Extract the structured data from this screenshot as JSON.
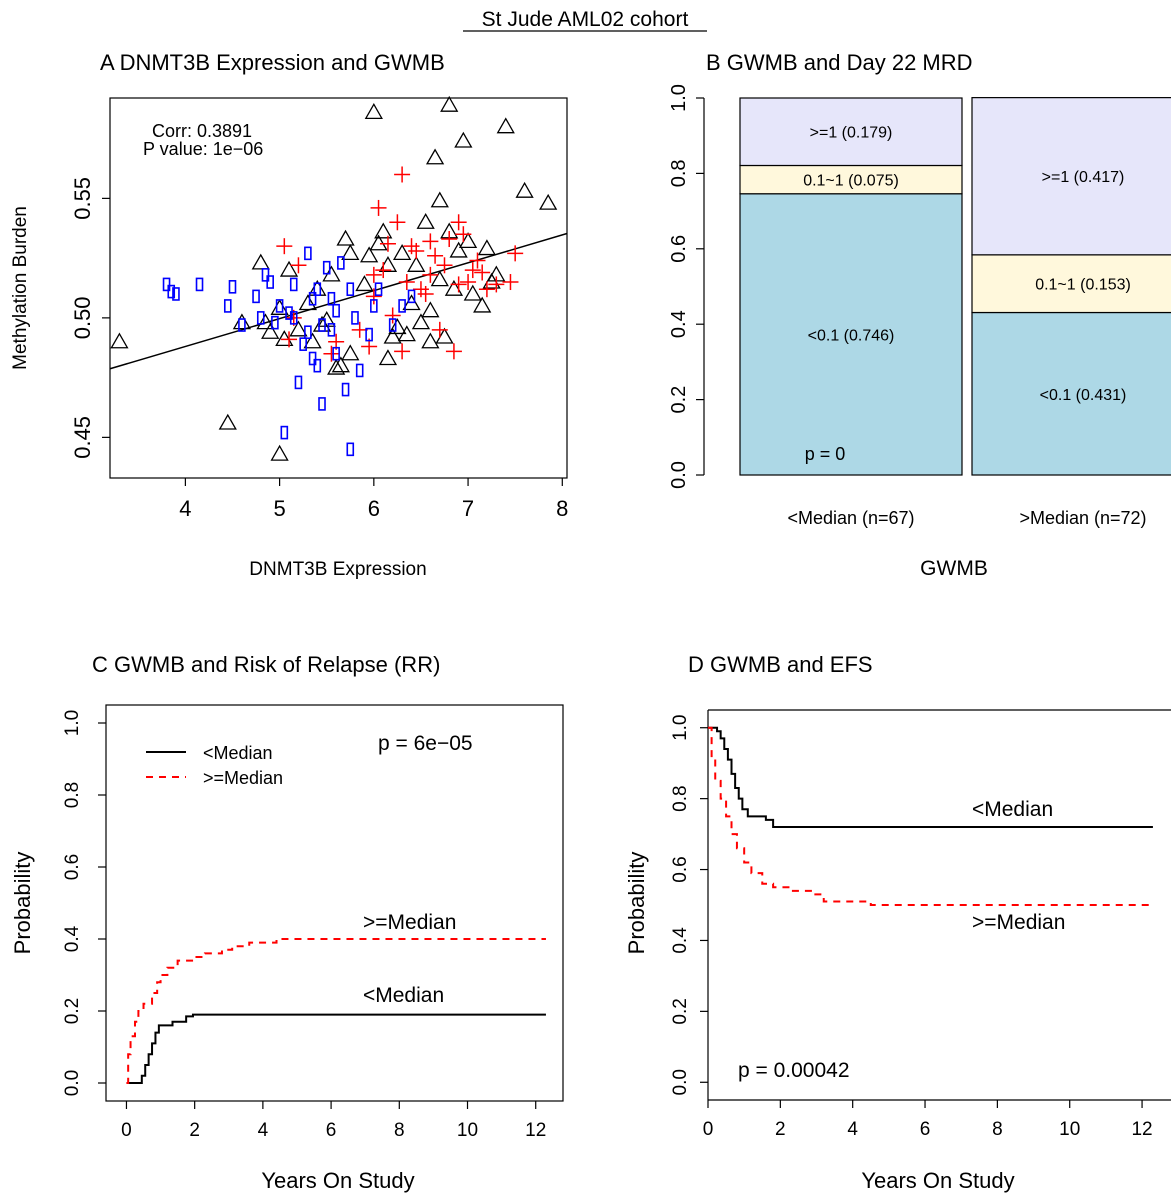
{
  "figure_title": "St Jude AML02 cohort",
  "chart_data": [
    {
      "panel": "A",
      "type": "scatter",
      "title": "A DNMT3B Expression and GWMB",
      "xlabel": "DNMT3B Expression",
      "ylabel": "Methylation Burden",
      "xlim": [
        3.2,
        8.05
      ],
      "ylim": [
        0.433,
        0.592
      ],
      "xticks": [
        "4",
        "5",
        "6",
        "7",
        "8"
      ],
      "yticks": [
        "0.45",
        "0.50",
        "0.55"
      ],
      "annotations": [
        "Corr: 0.3891",
        "P value: 1e−06"
      ],
      "fit_line": {
        "x": [
          3.2,
          8.05
        ],
        "y": [
          0.4787,
          0.5353
        ]
      },
      "series": [
        {
          "marker": "triangle",
          "color": "#000000",
          "points": [
            [
              3.3,
              0.49
            ],
            [
              4.45,
              0.456
            ],
            [
              4.6,
              0.498
            ],
            [
              4.8,
              0.523
            ],
            [
              4.85,
              0.498
            ],
            [
              4.9,
              0.494
            ],
            [
              5.0,
              0.504
            ],
            [
              5.0,
              0.443
            ],
            [
              5.05,
              0.491
            ],
            [
              5.1,
              0.52
            ],
            [
              5.2,
              0.495
            ],
            [
              5.3,
              0.506
            ],
            [
              5.35,
              0.49
            ],
            [
              5.4,
              0.512
            ],
            [
              5.45,
              0.497
            ],
            [
              5.5,
              0.499
            ],
            [
              5.55,
              0.518
            ],
            [
              5.6,
              0.479
            ],
            [
              5.65,
              0.48
            ],
            [
              5.7,
              0.533
            ],
            [
              5.75,
              0.527
            ],
            [
              5.75,
              0.485
            ],
            [
              5.9,
              0.514
            ],
            [
              5.95,
              0.526
            ],
            [
              6.0,
              0.586
            ],
            [
              6.05,
              0.531
            ],
            [
              6.1,
              0.536
            ],
            [
              6.15,
              0.522
            ],
            [
              6.15,
              0.483
            ],
            [
              6.2,
              0.492
            ],
            [
              6.25,
              0.496
            ],
            [
              6.3,
              0.527
            ],
            [
              6.35,
              0.493
            ],
            [
              6.4,
              0.506
            ],
            [
              6.45,
              0.522
            ],
            [
              6.5,
              0.498
            ],
            [
              6.55,
              0.54
            ],
            [
              6.6,
              0.503
            ],
            [
              6.6,
              0.49
            ],
            [
              6.65,
              0.567
            ],
            [
              6.7,
              0.549
            ],
            [
              6.7,
              0.516
            ],
            [
              6.75,
              0.492
            ],
            [
              6.8,
              0.589
            ],
            [
              6.8,
              0.536
            ],
            [
              6.85,
              0.512
            ],
            [
              6.9,
              0.528
            ],
            [
              6.95,
              0.574
            ],
            [
              7.0,
              0.532
            ],
            [
              7.05,
              0.51
            ],
            [
              7.15,
              0.505
            ],
            [
              7.2,
              0.529
            ],
            [
              7.25,
              0.515
            ],
            [
              7.3,
              0.518
            ],
            [
              7.4,
              0.58
            ],
            [
              7.6,
              0.553
            ],
            [
              7.85,
              0.548
            ]
          ]
        },
        {
          "marker": "plus",
          "color": "#ff0000",
          "points": [
            [
              5.05,
              0.53
            ],
            [
              5.1,
              0.491
            ],
            [
              5.15,
              0.5
            ],
            [
              5.2,
              0.522
            ],
            [
              5.55,
              0.485
            ],
            [
              5.6,
              0.49
            ],
            [
              5.85,
              0.495
            ],
            [
              5.95,
              0.488
            ],
            [
              6.0,
              0.518
            ],
            [
              6.05,
              0.546
            ],
            [
              6.1,
              0.52
            ],
            [
              6.15,
              0.531
            ],
            [
              6.2,
              0.501
            ],
            [
              6.25,
              0.54
            ],
            [
              6.3,
              0.56
            ],
            [
              6.3,
              0.486
            ],
            [
              6.35,
              0.515
            ],
            [
              6.4,
              0.53
            ],
            [
              6.45,
              0.528
            ],
            [
              6.5,
              0.512
            ],
            [
              6.55,
              0.51
            ],
            [
              6.6,
              0.532
            ],
            [
              6.65,
              0.526
            ],
            [
              6.7,
              0.495
            ],
            [
              6.75,
              0.522
            ],
            [
              6.8,
              0.533
            ],
            [
              6.85,
              0.486
            ],
            [
              6.9,
              0.54
            ],
            [
              6.9,
              0.514
            ],
            [
              6.95,
              0.535
            ],
            [
              7.0,
              0.515
            ],
            [
              7.05,
              0.52
            ],
            [
              7.1,
              0.524
            ],
            [
              7.15,
              0.519
            ],
            [
              7.2,
              0.512
            ],
            [
              7.3,
              0.514
            ],
            [
              7.45,
              0.515
            ],
            [
              7.5,
              0.527
            ],
            [
              6.0,
              0.509
            ],
            [
              6.6,
              0.518
            ]
          ]
        },
        {
          "marker": "rect",
          "color": "#0000ff",
          "points": [
            [
              3.8,
              0.514
            ],
            [
              3.85,
              0.511
            ],
            [
              3.9,
              0.51
            ],
            [
              4.15,
              0.514
            ],
            [
              4.45,
              0.505
            ],
            [
              4.5,
              0.513
            ],
            [
              4.6,
              0.497
            ],
            [
              4.75,
              0.509
            ],
            [
              4.8,
              0.5
            ],
            [
              4.85,
              0.518
            ],
            [
              4.9,
              0.515
            ],
            [
              4.95,
              0.498
            ],
            [
              5.0,
              0.505
            ],
            [
              5.05,
              0.452
            ],
            [
              5.1,
              0.502
            ],
            [
              5.15,
              0.5
            ],
            [
              5.15,
              0.514
            ],
            [
              5.2,
              0.473
            ],
            [
              5.25,
              0.489
            ],
            [
              5.3,
              0.494
            ],
            [
              5.3,
              0.527
            ],
            [
              5.35,
              0.483
            ],
            [
              5.4,
              0.48
            ],
            [
              5.4,
              0.512
            ],
            [
              5.45,
              0.464
            ],
            [
              5.45,
              0.497
            ],
            [
              5.5,
              0.521
            ],
            [
              5.55,
              0.508
            ],
            [
              5.6,
              0.503
            ],
            [
              5.6,
              0.485
            ],
            [
              5.65,
              0.523
            ],
            [
              5.7,
              0.47
            ],
            [
              5.75,
              0.512
            ],
            [
              5.75,
              0.445
            ],
            [
              5.8,
              0.5
            ],
            [
              5.85,
              0.478
            ],
            [
              5.95,
              0.493
            ],
            [
              6.0,
              0.505
            ],
            [
              6.05,
              0.512
            ],
            [
              6.2,
              0.497
            ],
            [
              6.3,
              0.505
            ],
            [
              6.4,
              0.509
            ],
            [
              5.35,
              0.508
            ],
            [
              5.55,
              0.495
            ]
          ]
        }
      ]
    },
    {
      "panel": "B",
      "type": "bar",
      "stacked": true,
      "title": "B GWMB and Day 22 MRD",
      "xlabel": "GWMB",
      "ylim": [
        0,
        1
      ],
      "yticks": [
        "0.0",
        "0.2",
        "0.4",
        "0.6",
        "0.8",
        "1.0"
      ],
      "categories": [
        "<Median (n=67)",
        ">Median (n=72)"
      ],
      "series": [
        {
          "name": "<0.1",
          "color": "#add8e6",
          "values": [
            0.746,
            0.431
          ],
          "labels": [
            "<0.1 (0.746)",
            "<0.1 (0.431)"
          ]
        },
        {
          "name": "0.1~1",
          "color": "#fff8dc",
          "values": [
            0.075,
            0.153
          ],
          "labels": [
            "0.1~1 (0.075)",
            "0.1~1 (0.153)"
          ]
        },
        {
          "name": ">=1",
          "color": "#e6e6fa",
          "values": [
            0.179,
            0.417
          ],
          "labels": [
            ">=1 (0.179)",
            ">=1 (0.417)"
          ]
        }
      ],
      "annotation": "p = 0"
    },
    {
      "panel": "C",
      "type": "line",
      "step": true,
      "title": "C GWMB and Risk of Relapse (RR)",
      "xlabel": "Years On Study",
      "ylabel": "Probability",
      "xlim": [
        -0.6,
        12.8
      ],
      "ylim": [
        -0.05,
        1.05
      ],
      "xticks": [
        "0",
        "2",
        "4",
        "6",
        "8",
        "10",
        "12"
      ],
      "yticks": [
        "0.0",
        "0.2",
        "0.4",
        "0.6",
        "0.8",
        "1.0"
      ],
      "annotation": "p = 6e−05",
      "legend": {
        "entries": [
          "<Median",
          ">=Median"
        ],
        "position": "top-left"
      },
      "curve_labels": [
        "<Median",
        ">=Median"
      ],
      "series": [
        {
          "name": "<Median",
          "color": "#000000",
          "dash": false,
          "points": [
            [
              0,
              0
            ],
            [
              0.4,
              0
            ],
            [
              0.45,
              0.02
            ],
            [
              0.55,
              0.05
            ],
            [
              0.65,
              0.08
            ],
            [
              0.75,
              0.11
            ],
            [
              0.85,
              0.14
            ],
            [
              0.95,
              0.16
            ],
            [
              1.3,
              0.16
            ],
            [
              1.35,
              0.17
            ],
            [
              1.7,
              0.17
            ],
            [
              1.75,
              0.185
            ],
            [
              1.9,
              0.185
            ],
            [
              1.95,
              0.19
            ],
            [
              12.3,
              0.19
            ]
          ]
        },
        {
          "name": ">=Median",
          "color": "#ff0000",
          "dash": true,
          "points": [
            [
              0,
              0
            ],
            [
              0.05,
              0.08
            ],
            [
              0.12,
              0.13
            ],
            [
              0.25,
              0.17
            ],
            [
              0.35,
              0.2
            ],
            [
              0.5,
              0.22
            ],
            [
              0.75,
              0.25
            ],
            [
              0.9,
              0.28
            ],
            [
              1.0,
              0.3
            ],
            [
              1.2,
              0.32
            ],
            [
              1.5,
              0.34
            ],
            [
              2.0,
              0.35
            ],
            [
              2.3,
              0.36
            ],
            [
              2.8,
              0.37
            ],
            [
              3.1,
              0.38
            ],
            [
              3.6,
              0.39
            ],
            [
              4.4,
              0.4
            ],
            [
              12.3,
              0.4
            ]
          ]
        }
      ]
    },
    {
      "panel": "D",
      "type": "line",
      "step": true,
      "title": "D GWMB and EFS",
      "xlabel": "Years On Study",
      "ylabel": "Probability",
      "xlim": [
        0,
        12.8
      ],
      "ylim": [
        -0.05,
        1.05
      ],
      "xticks": [
        "0",
        "2",
        "4",
        "6",
        "8",
        "10",
        "12"
      ],
      "yticks": [
        "0.0",
        "0.2",
        "0.4",
        "0.6",
        "0.8",
        "1.0"
      ],
      "annotation": "p = 0.00042",
      "curve_labels": [
        "<Median",
        ">=Median"
      ],
      "series": [
        {
          "name": "<Median",
          "color": "#000000",
          "dash": false,
          "points": [
            [
              0,
              1.0
            ],
            [
              0.15,
              1.0
            ],
            [
              0.25,
              0.99
            ],
            [
              0.35,
              0.97
            ],
            [
              0.45,
              0.94
            ],
            [
              0.55,
              0.91
            ],
            [
              0.65,
              0.87
            ],
            [
              0.75,
              0.83
            ],
            [
              0.85,
              0.8
            ],
            [
              0.95,
              0.77
            ],
            [
              1.1,
              0.75
            ],
            [
              1.6,
              0.74
            ],
            [
              1.8,
              0.72
            ],
            [
              12.3,
              0.72
            ]
          ]
        },
        {
          "name": ">=Median",
          "color": "#ff0000",
          "dash": true,
          "points": [
            [
              0,
              1.0
            ],
            [
              0.1,
              0.92
            ],
            [
              0.2,
              0.85
            ],
            [
              0.35,
              0.8
            ],
            [
              0.5,
              0.75
            ],
            [
              0.65,
              0.7
            ],
            [
              0.8,
              0.66
            ],
            [
              1.0,
              0.62
            ],
            [
              1.2,
              0.59
            ],
            [
              1.5,
              0.56
            ],
            [
              1.8,
              0.55
            ],
            [
              2.3,
              0.54
            ],
            [
              2.9,
              0.53
            ],
            [
              3.2,
              0.51
            ],
            [
              4.5,
              0.5
            ],
            [
              12.3,
              0.5
            ]
          ]
        }
      ]
    }
  ]
}
